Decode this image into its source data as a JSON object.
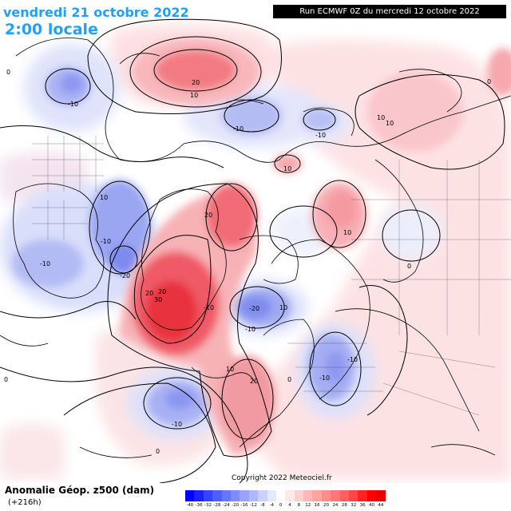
{
  "header": {
    "date": "vendredi 21 octobre 2022",
    "time": "2:00 locale",
    "run": "Run ECMWF 0Z du mercredi 12 octobre 2022"
  },
  "footer": {
    "title": "Anomalie Géop. z500 (dam)",
    "subtitle": "(+216h)",
    "copyright": "Copyright 2022 Meteociel.fr"
  },
  "legend": {
    "labels": [
      "-40",
      "-36",
      "-32",
      "-28",
      "-24",
      "-20",
      "-16",
      "-12",
      "-8",
      "-4",
      "0",
      "4",
      "8",
      "12",
      "16",
      "20",
      "24",
      "28",
      "32",
      "36",
      "40",
      "44"
    ],
    "colors": [
      "#0000ff",
      "#1a22ff",
      "#3345ff",
      "#4d5fff",
      "#6676ff",
      "#7f8cff",
      "#99a2ff",
      "#b2b8ff",
      "#ccd0ff",
      "#e5e8ff",
      "#ffffff",
      "#ffe8e8",
      "#ffd0d0",
      "#ffb8b8",
      "#ffa2a2",
      "#ff8c8c",
      "#ff7676",
      "#ff5f5f",
      "#ff4545",
      "#ff2222",
      "#ff0000",
      "#e60000"
    ]
  },
  "contour_labels": [
    {
      "text": "20",
      "color": "#000"
    },
    {
      "text": "10",
      "color": "#000"
    },
    {
      "text": "-10",
      "color": "#000"
    },
    {
      "text": "0",
      "color": "#000"
    },
    {
      "text": "-10",
      "color": "#000"
    },
    {
      "text": "-10",
      "color": "#000"
    },
    {
      "text": "10",
      "color": "#000"
    },
    {
      "text": "10",
      "color": "#000"
    },
    {
      "text": "10",
      "color": "#000"
    },
    {
      "text": "-10",
      "color": "#000"
    },
    {
      "text": "-20",
      "color": "#000"
    },
    {
      "text": "20",
      "color": "#000"
    },
    {
      "text": "30",
      "color": "#000"
    },
    {
      "text": "20",
      "color": "#000"
    },
    {
      "text": "-10",
      "color": "#000"
    },
    {
      "text": "-20",
      "color": "#000"
    },
    {
      "text": "-10",
      "color": "#000"
    },
    {
      "text": "20",
      "color": "#000"
    },
    {
      "text": "10",
      "color": "#000"
    },
    {
      "text": "-10",
      "color": "#000"
    },
    {
      "text": "10",
      "color": "#000"
    },
    {
      "text": "10",
      "color": "#000"
    },
    {
      "text": "10",
      "color": "#000"
    },
    {
      "text": "0",
      "color": "#000"
    },
    {
      "text": "0",
      "color": "#000"
    },
    {
      "text": "-10",
      "color": "#000"
    },
    {
      "text": "0",
      "color": "#000"
    },
    {
      "text": "0",
      "color": "#000"
    },
    {
      "text": "0",
      "color": "#000"
    },
    {
      "text": "-10",
      "color": "#000"
    },
    {
      "text": "20",
      "color": "#000"
    },
    {
      "text": "-10",
      "color": "#000"
    }
  ]
}
